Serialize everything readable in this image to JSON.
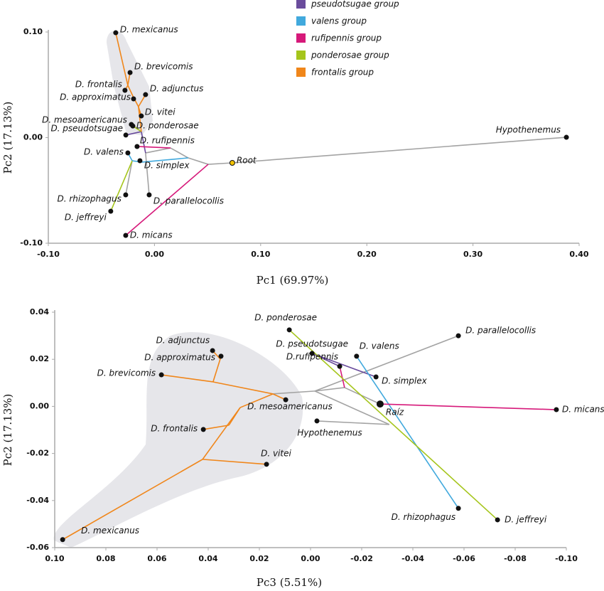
{
  "chart_data": [
    {
      "type": "scatter",
      "x_label": "Pc1 (69.97%)",
      "y_label": "Pc2 (17.13%)",
      "xlim": [
        -0.1,
        0.4
      ],
      "ylim": [
        -0.1,
        0.1
      ],
      "xticks": [
        {
          "value": -0.1,
          "label": "-0.10"
        },
        {
          "value": 0,
          "label": "0.00"
        },
        {
          "value": 0.1,
          "label": "0.10"
        },
        {
          "value": 0.2,
          "label": "0.20"
        },
        {
          "value": 0.3,
          "label": "0.30"
        },
        {
          "value": 0.4,
          "label": "0.40"
        }
      ],
      "yticks": [
        {
          "value": -0.1,
          "label": "-0.10"
        },
        {
          "value": 0,
          "label": "0.00"
        },
        {
          "value": 0.1,
          "label": "0.10"
        }
      ],
      "point_color": "#111111",
      "root_color": "#f2c200",
      "other_color": "#a3a3a3",
      "points": {
        "labels": [
          "D. mexicanus",
          "D. brevicomis",
          "D. frontalis",
          "D. adjunctus",
          "D. approximatus",
          "D. vitei",
          "D. mesoamericanus",
          "D. ponderosae",
          "D. pseudotsugae",
          "D. rufipennis",
          "D. valens",
          "D. simplex",
          "D. rhizophagus",
          "D. parallelocollis",
          "D. jeffreyi",
          "D. micans",
          "Root",
          "Hypothenemus"
        ],
        "x": [
          -0.0365,
          -0.023,
          -0.0278,
          -0.0084,
          -0.0197,
          -0.0124,
          -0.0218,
          -0.0204,
          -0.027,
          -0.0164,
          -0.0251,
          -0.0137,
          -0.0271,
          -0.005,
          -0.0412,
          -0.0271,
          0.0733,
          0.388
        ],
        "y": [
          0.0993,
          0.0616,
          0.0448,
          0.0407,
          0.0367,
          0.0205,
          0.0125,
          0.011,
          0.0024,
          -0.0084,
          -0.0145,
          -0.0219,
          -0.0542,
          -0.0542,
          -0.0697,
          -0.0926,
          -0.0239,
          0.0003
        ]
      },
      "series": [
        {
          "name": "pseudotsugae group",
          "color": "#6a4c9c",
          "edges": [
            [
              -0.0084,
              -0.0145,
              -0.0124,
              0.0057
            ],
            [
              -0.0124,
              0.0057,
              -0.027,
              0.0024
            ]
          ]
        },
        {
          "name": "valens group",
          "color": "#41a9dd",
          "edges": [
            [
              0.0318,
              -0.0192,
              -0.0117,
              -0.0232
            ],
            [
              -0.0117,
              -0.0232,
              -0.021,
              -0.0219
            ],
            [
              -0.021,
              -0.0219,
              -0.0251,
              -0.0145
            ]
          ]
        },
        {
          "name": "rufipennis group",
          "color": "#d6197a",
          "edges": [
            [
              0.0506,
              -0.0253,
              -0.0271,
              -0.0926
            ],
            [
              0.0151,
              -0.0098,
              -0.0164,
              -0.0084
            ]
          ]
        },
        {
          "name": "ponderosae group",
          "color": "#a5c51b",
          "edges": [
            [
              -0.021,
              -0.0219,
              -0.0412,
              -0.0697
            ],
            [
              -0.0124,
              0.0057,
              -0.0204,
              0.011
            ]
          ]
        },
        {
          "name": "frontalis group",
          "color": "#f0861a",
          "edges": [
            [
              -0.0124,
              0.0057,
              -0.0151,
              0.0293
            ],
            [
              -0.0151,
              0.0293,
              -0.0124,
              0.0205
            ],
            [
              -0.0151,
              0.0293,
              -0.0084,
              0.0407
            ],
            [
              -0.0151,
              0.0293,
              -0.0204,
              0.0394
            ],
            [
              -0.0204,
              0.0394,
              -0.0197,
              0.0367
            ],
            [
              -0.0204,
              0.0394,
              -0.0251,
              0.0495
            ],
            [
              -0.0251,
              0.0495,
              -0.0278,
              0.0448
            ],
            [
              -0.0251,
              0.0495,
              -0.0365,
              0.0993
            ],
            [
              -0.0251,
              0.0495,
              -0.023,
              0.0616
            ]
          ]
        }
      ],
      "other_edges": [
        [
          0.388,
          0.0003,
          0.0733,
          -0.0239
        ],
        [
          0.0733,
          -0.0239,
          0.0506,
          -0.0253
        ],
        [
          0.0506,
          -0.0253,
          0.0318,
          -0.0192
        ],
        [
          0.0318,
          -0.0192,
          0.0151,
          -0.0098
        ],
        [
          0.0151,
          -0.0098,
          -0.0084,
          -0.0145
        ],
        [
          -0.0084,
          -0.0145,
          -0.005,
          -0.0542
        ],
        [
          -0.0117,
          -0.0232,
          -0.0137,
          -0.0219
        ],
        [
          -0.021,
          -0.0219,
          -0.0271,
          -0.0542
        ],
        [
          -0.0124,
          0.0057,
          -0.0218,
          0.0125
        ]
      ]
    },
    {
      "type": "scatter",
      "x_label": "Pc3 (5.51%)",
      "y_label": "Pc2 (17.13%)",
      "xlim": [
        0.1,
        -0.1
      ],
      "ylim": [
        -0.06,
        0.04
      ],
      "xticks": [
        {
          "value": 0.1,
          "label": "0.10"
        },
        {
          "value": 0.08,
          "label": "0.08"
        },
        {
          "value": 0.06,
          "label": "0.06"
        },
        {
          "value": 0.04,
          "label": "0.04"
        },
        {
          "value": 0.02,
          "label": "0.02"
        },
        {
          "value": 0,
          "label": "0.00"
        },
        {
          "value": -0.02,
          "label": "-0.02"
        },
        {
          "value": -0.04,
          "label": "-0.04"
        },
        {
          "value": -0.06,
          "label": "-0.06"
        },
        {
          "value": -0.08,
          "label": "-0.08"
        },
        {
          "value": -0.1,
          "label": "-0.10"
        }
      ],
      "yticks": [
        {
          "value": -0.06,
          "label": "-0.06"
        },
        {
          "value": -0.04,
          "label": "-0.04"
        },
        {
          "value": -0.02,
          "label": "-0.02"
        },
        {
          "value": 0,
          "label": "0.00"
        },
        {
          "value": 0.02,
          "label": "0.02"
        },
        {
          "value": 0.04,
          "label": "0.04"
        }
      ],
      "point_color": "#111111",
      "root_color": "#111111",
      "other_color": "#a3a3a3",
      "points": {
        "labels": [
          "D. ponderosae",
          "D. parallelocollis",
          "D. adjunctus",
          "D. approximatus",
          "D. pseudotsugae",
          "D. valens",
          "D. brevicomis",
          "D.rufipennis",
          "D. simplex",
          "D. mesoamericanus",
          "Raíz",
          "D. micans",
          "Hypothenemus",
          "D. frontalis",
          "D. vitei",
          "D. rhizophagus",
          "D. jeffreyi",
          "D. mexicanus"
        ],
        "x": [
          0.0083,
          -0.0578,
          0.0383,
          0.035,
          -0.0006,
          -0.018,
          0.0583,
          -0.0114,
          -0.0256,
          0.0097,
          -0.0272,
          -0.0961,
          -0.0025,
          0.0419,
          0.0172,
          -0.0578,
          -0.0731,
          0.0969
        ],
        "y": [
          0.0325,
          0.03,
          0.0237,
          0.0213,
          0.0225,
          0.0213,
          0.0134,
          0.017,
          0.0125,
          0.0028,
          0.001,
          -0.0014,
          -0.0062,
          -0.0098,
          -0.0246,
          -0.0433,
          -0.0482,
          -0.0566
        ]
      },
      "series": [
        {
          "color": "#6a4c9c",
          "edges": [
            [
              -0.0006,
              0.0225,
              -0.0256,
              0.0125
            ],
            [
              -0.0006,
              0.0225,
              -0.0114,
              0.017
            ]
          ]
        },
        {
          "color": "#41a9dd",
          "edges": [
            [
              -0.018,
              0.0213,
              -0.0578,
              -0.0433
            ]
          ]
        },
        {
          "color": "#d6197a",
          "edges": [
            [
              -0.0272,
              0.001,
              -0.0961,
              -0.0014
            ],
            [
              -0.0133,
              0.008,
              -0.0114,
              0.017
            ]
          ]
        },
        {
          "color": "#a5c51b",
          "edges": [
            [
              0.0083,
              0.0325,
              -0.0731,
              -0.0482
            ]
          ]
        },
        {
          "color": "#f0861a",
          "edges": [
            [
              0.0147,
              0.0053,
              0.0097,
              0.0028
            ],
            [
              0.0147,
              0.0053,
              0.0381,
              0.0104
            ],
            [
              0.0381,
              0.0104,
              0.0583,
              0.0134
            ],
            [
              0.0381,
              0.0104,
              0.0353,
              0.0201
            ],
            [
              0.0353,
              0.0201,
              0.0383,
              0.0237
            ],
            [
              0.0353,
              0.0201,
              0.035,
              0.0213
            ],
            [
              0.0147,
              0.0053,
              0.0275,
              -0.0005
            ],
            [
              0.0275,
              -0.0005,
              0.0319,
              -0.008
            ],
            [
              0.0319,
              -0.008,
              0.0419,
              -0.0098
            ],
            [
              0.0275,
              -0.0005,
              0.0422,
              -0.0225
            ],
            [
              0.0422,
              -0.0225,
              0.0172,
              -0.0246
            ],
            [
              0.0422,
              -0.0225,
              0.0969,
              -0.0566
            ]
          ]
        }
      ],
      "other_edges": [
        [
          0.0147,
          0.0053,
          -0.0017,
          0.0065
        ],
        [
          -0.0017,
          0.0065,
          -0.0578,
          0.03
        ],
        [
          -0.0017,
          0.0065,
          -0.0308,
          -0.0077
        ],
        [
          -0.0308,
          -0.0077,
          -0.0025,
          -0.0062
        ],
        [
          -0.0017,
          0.0065,
          -0.0133,
          0.008
        ],
        [
          -0.0133,
          0.008,
          -0.0272,
          0.001
        ]
      ]
    }
  ]
}
